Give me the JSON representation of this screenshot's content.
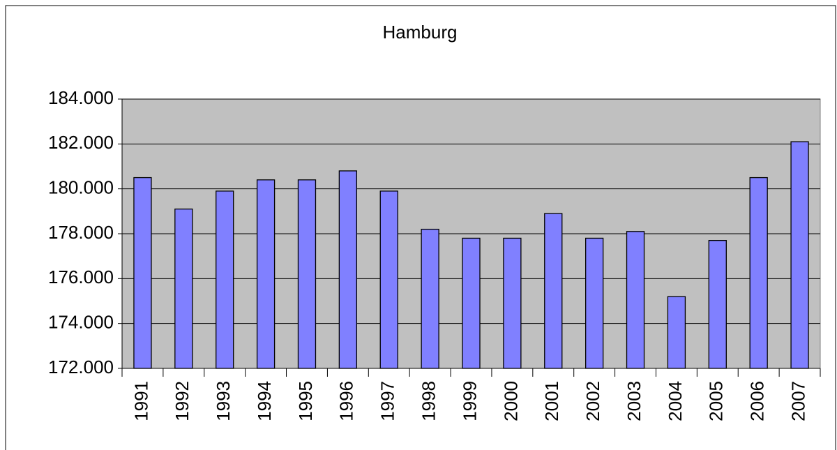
{
  "chart_data": {
    "type": "bar",
    "title": "Hamburg",
    "categories": [
      "1991",
      "1992",
      "1993",
      "1994",
      "1995",
      "1996",
      "1997",
      "1998",
      "1999",
      "2000",
      "2001",
      "2002",
      "2003",
      "2004",
      "2005",
      "2006",
      "2007"
    ],
    "values": [
      180500,
      179100,
      179900,
      180400,
      180400,
      180800,
      179900,
      178200,
      177800,
      177800,
      178900,
      177800,
      178100,
      175200,
      177700,
      180500,
      182100
    ],
    "color": "#8080ff",
    "ylim": [
      172000,
      184000
    ],
    "yticks": [
      {
        "value": 172000,
        "label": "172.000"
      },
      {
        "value": 174000,
        "label": "174.000"
      },
      {
        "value": 176000,
        "label": "176.000"
      },
      {
        "value": 178000,
        "label": "178.000"
      },
      {
        "value": 180000,
        "label": "180.000"
      },
      {
        "value": 182000,
        "label": "182.000"
      },
      {
        "value": 184000,
        "label": "184.000"
      }
    ],
    "grid": true
  }
}
